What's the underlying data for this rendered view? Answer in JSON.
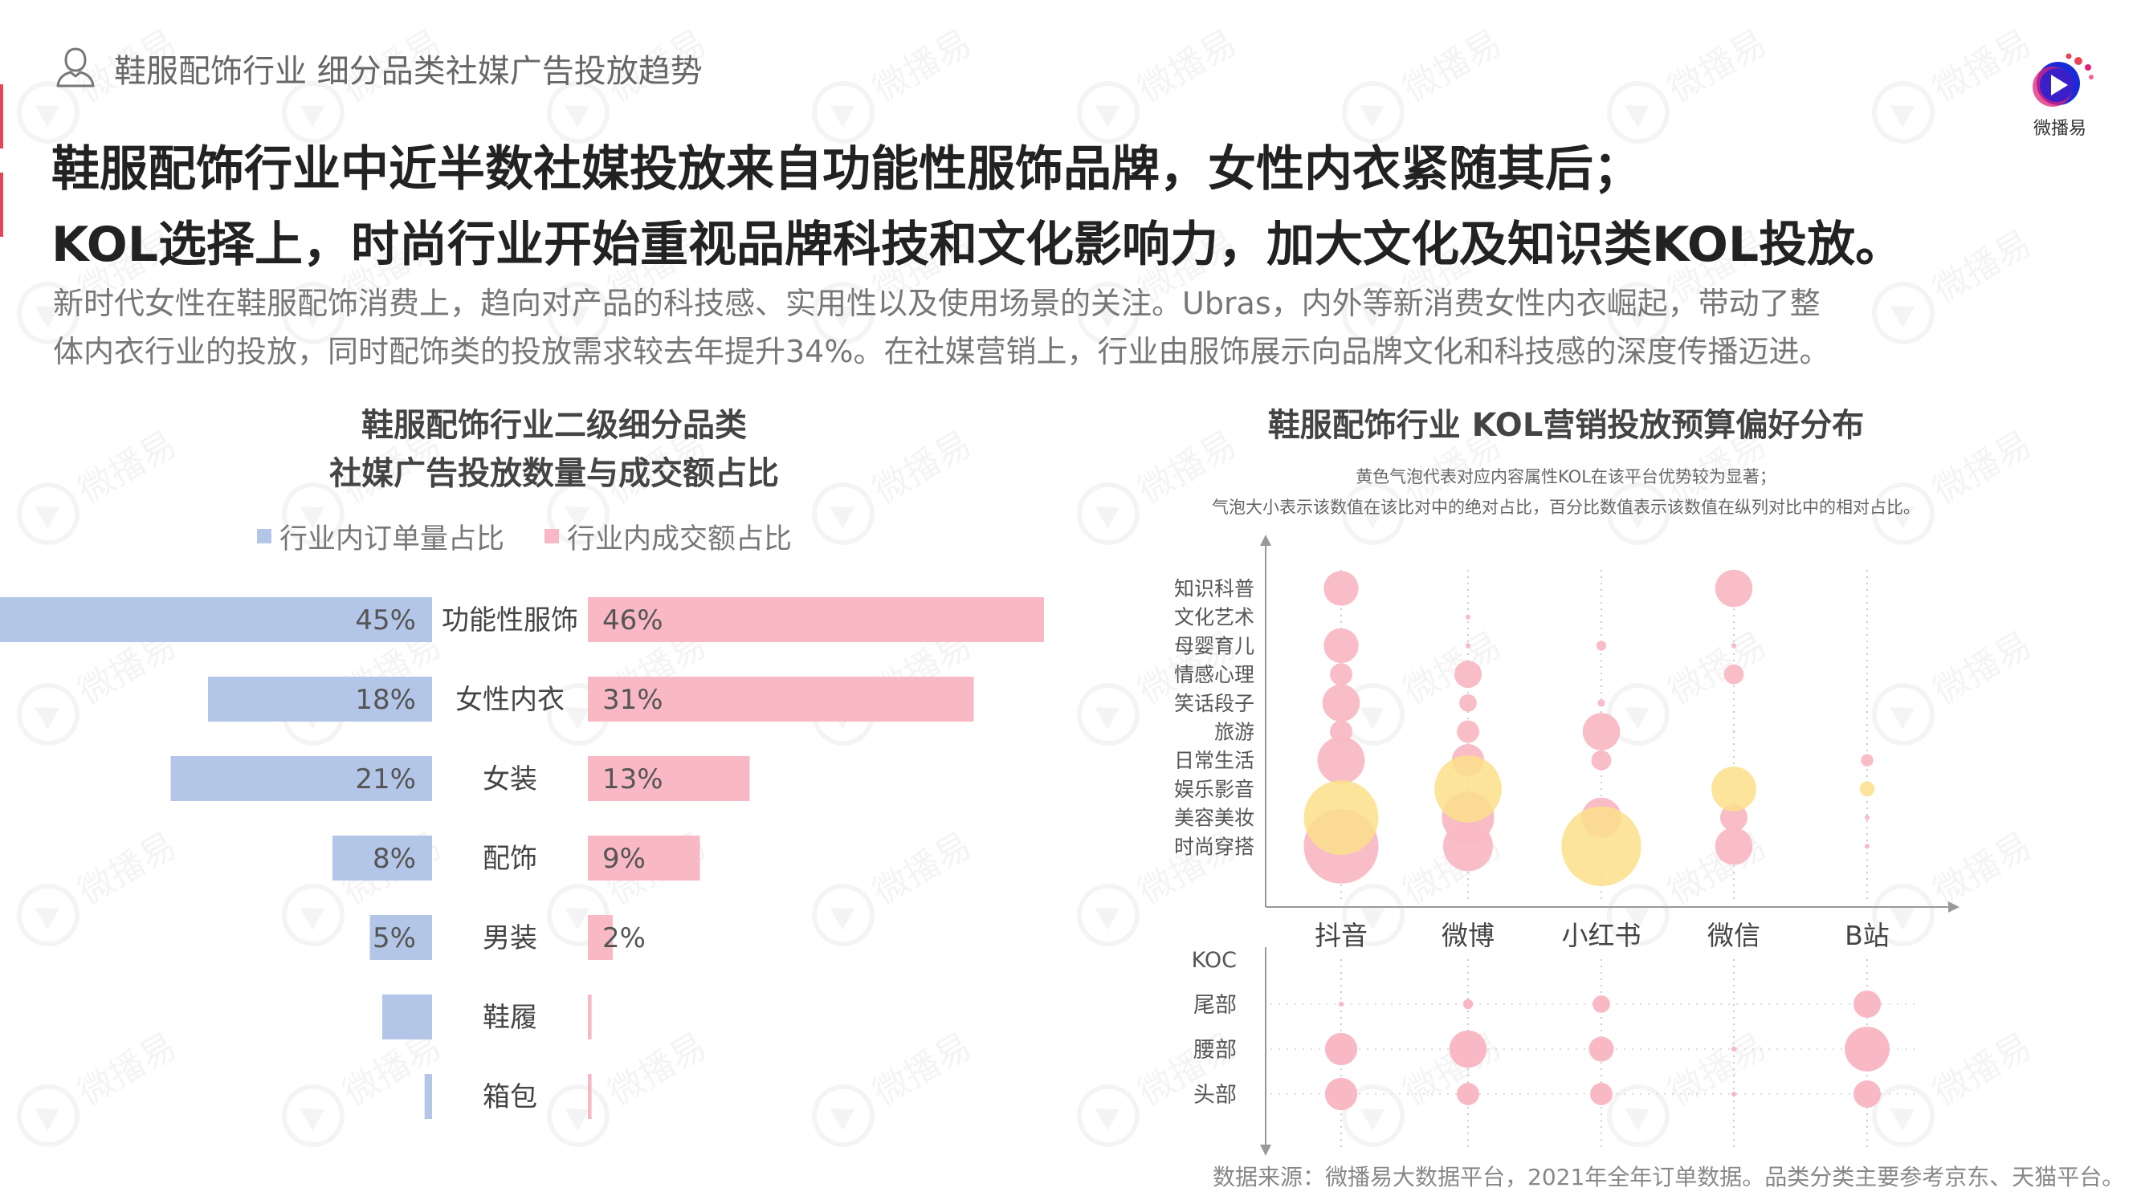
{
  "header": {
    "section_tag": "鞋服配饰行业 细分品类社媒广告投放趋势",
    "headline_line1": "鞋服配饰行业中近半数社媒投放来自功能性服饰品牌，女性内衣紧随其后；",
    "headline_line2": "KOL选择上，时尚行业开始重视品牌科技和文化影响力，加大文化及知识类KOL投放。",
    "intro_line1": "新时代女性在鞋服配饰消费上，趋向对产品的科技感、实用性以及使用场景的关注。Ubras，内外等新消费女性内衣崛起，带动了整",
    "intro_line2": "体内衣行业的投放，同时配饰类的投放需求较去年提升34%。在社媒营销上，行业由服饰展示向品牌文化和科技感的深度传播迈进。"
  },
  "logo": {
    "text": "微播易"
  },
  "watermark": {
    "text": "微播易"
  },
  "icons": {
    "section_tag": "user-outline-icon",
    "logo": "play-logo-icon"
  },
  "colors": {
    "accent": "#e8455a",
    "blue": "#b4c6e7",
    "pink": "#f9b9c4",
    "yellow": "#fbe18a",
    "axis": "#999999"
  },
  "footer": {
    "source": "数据来源：微播易大数据平台，2021年全年订单数据。品类分类主要参考京东、天猫平台。"
  },
  "chart_data": [
    {
      "type": "bar",
      "title_line1": "鞋服配饰行业二级细分品类",
      "title_line2": "社媒广告投放数量与成交额占比",
      "legend": [
        "行业内订单量占比",
        "行业内成交额占比"
      ],
      "categories": [
        "功能性服饰",
        "女性内衣",
        "女装",
        "配饰",
        "男装",
        "鞋履",
        "箱包"
      ],
      "series": [
        {
          "name": "行业内订单量占比",
          "values": [
            45,
            18,
            21,
            8,
            5,
            4,
            0.6
          ],
          "labels": [
            "45%",
            "18%",
            "21%",
            "8%",
            "5%",
            "",
            ""
          ]
        },
        {
          "name": "行业内成交额占比",
          "values": [
            46,
            31,
            13,
            9,
            2,
            0.3,
            0.3
          ],
          "labels": [
            "46%",
            "31%",
            "13%",
            "9%",
            "2%",
            "",
            ""
          ]
        }
      ],
      "xlim": [
        0,
        50
      ]
    },
    {
      "type": "scatter",
      "subtype": "bubble",
      "title": "鞋服配饰行业 KOL营销投放预算偏好分布",
      "note_line1": "黄色气泡代表对应内容属性KOL在该平台优势较为显著；",
      "note_line2": "气泡大小表示该数值在该比对中的绝对占比，百分比数值表示该数值在纵列对比中的相对占比。",
      "platforms": [
        "抖音",
        "微博",
        "小红书",
        "微信",
        "B站"
      ],
      "content_categories": [
        "知识科普",
        "文化艺术",
        "母婴育儿",
        "情感心理",
        "笑话段子",
        "旅游",
        "日常生活",
        "娱乐影音",
        "美容美妆",
        "时尚穿搭"
      ],
      "kol_levels": [
        "KOC",
        "尾部",
        "腰部",
        "头部"
      ],
      "content_bubbles": [
        {
          "platform": "抖音",
          "category": "知识科普",
          "size": 14,
          "highlight": false
        },
        {
          "platform": "抖音",
          "category": "母婴育儿",
          "size": 14,
          "highlight": false
        },
        {
          "platform": "抖音",
          "category": "情感心理",
          "size": 9,
          "highlight": false
        },
        {
          "platform": "抖音",
          "category": "笑话段子",
          "size": 15,
          "highlight": false
        },
        {
          "platform": "抖音",
          "category": "旅游",
          "size": 9,
          "highlight": false
        },
        {
          "platform": "抖音",
          "category": "日常生活",
          "size": 19,
          "highlight": false
        },
        {
          "platform": "抖音",
          "category": "美容美妆",
          "size": 30,
          "highlight": true
        },
        {
          "platform": "抖音",
          "category": "时尚穿搭",
          "size": 30,
          "highlight": false
        },
        {
          "platform": "微博",
          "category": "文化艺术",
          "size": 2,
          "highlight": false
        },
        {
          "platform": "微博",
          "category": "母婴育儿",
          "size": 2,
          "highlight": false
        },
        {
          "platform": "微博",
          "category": "情感心理",
          "size": 11,
          "highlight": false
        },
        {
          "platform": "微博",
          "category": "笑话段子",
          "size": 7,
          "highlight": false
        },
        {
          "platform": "微博",
          "category": "旅游",
          "size": 9,
          "highlight": false
        },
        {
          "platform": "微博",
          "category": "日常生活",
          "size": 13,
          "highlight": false
        },
        {
          "platform": "微博",
          "category": "娱乐影音",
          "size": 27,
          "highlight": true
        },
        {
          "platform": "微博",
          "category": "美容美妆",
          "size": 21,
          "highlight": false
        },
        {
          "platform": "微博",
          "category": "时尚穿搭",
          "size": 20,
          "highlight": false
        },
        {
          "platform": "小红书",
          "category": "母婴育儿",
          "size": 4,
          "highlight": false
        },
        {
          "platform": "小红书",
          "category": "笑话段子",
          "size": 3,
          "highlight": false
        },
        {
          "platform": "小红书",
          "category": "旅游",
          "size": 15,
          "highlight": false
        },
        {
          "platform": "小红书",
          "category": "日常生活",
          "size": 8,
          "highlight": false
        },
        {
          "platform": "小红书",
          "category": "美容美妆",
          "size": 16,
          "highlight": false
        },
        {
          "platform": "小红书",
          "category": "时尚穿搭",
          "size": 32,
          "highlight": true
        },
        {
          "platform": "微信",
          "category": "知识科普",
          "size": 15,
          "highlight": false
        },
        {
          "platform": "微信",
          "category": "母婴育儿",
          "size": 2,
          "highlight": false
        },
        {
          "platform": "微信",
          "category": "情感心理",
          "size": 8,
          "highlight": false
        },
        {
          "platform": "微信",
          "category": "旅游",
          "size": 1,
          "highlight": false
        },
        {
          "platform": "微信",
          "category": "娱乐影音",
          "size": 18,
          "highlight": true
        },
        {
          "platform": "微信",
          "category": "美容美妆",
          "size": 11,
          "highlight": false
        },
        {
          "platform": "微信",
          "category": "时尚穿搭",
          "size": 15,
          "highlight": false
        },
        {
          "platform": "B站",
          "category": "日常生活",
          "size": 5,
          "highlight": false
        },
        {
          "platform": "B站",
          "category": "娱乐影音",
          "size": 6,
          "highlight": true
        },
        {
          "platform": "B站",
          "category": "美容美妆",
          "size": 2,
          "highlight": false
        },
        {
          "platform": "B站",
          "category": "时尚穿搭",
          "size": 2,
          "highlight": false
        }
      ],
      "kol_bubbles": [
        {
          "platform": "抖音",
          "level": "尾部",
          "size": 2
        },
        {
          "platform": "抖音",
          "level": "腰部",
          "size": 13
        },
        {
          "platform": "抖音",
          "level": "头部",
          "size": 13
        },
        {
          "platform": "微博",
          "level": "尾部",
          "size": 4
        },
        {
          "platform": "微博",
          "level": "腰部",
          "size": 15
        },
        {
          "platform": "微博",
          "level": "头部",
          "size": 9
        },
        {
          "platform": "小红书",
          "level": "尾部",
          "size": 7
        },
        {
          "platform": "小红书",
          "level": "腰部",
          "size": 10
        },
        {
          "platform": "小红书",
          "level": "头部",
          "size": 9
        },
        {
          "platform": "微信",
          "level": "腰部",
          "size": 2
        },
        {
          "platform": "微信",
          "level": "头部",
          "size": 2
        },
        {
          "platform": "B站",
          "level": "尾部",
          "size": 11
        },
        {
          "platform": "B站",
          "level": "腰部",
          "size": 18
        },
        {
          "platform": "B站",
          "level": "头部",
          "size": 11
        }
      ]
    }
  ]
}
